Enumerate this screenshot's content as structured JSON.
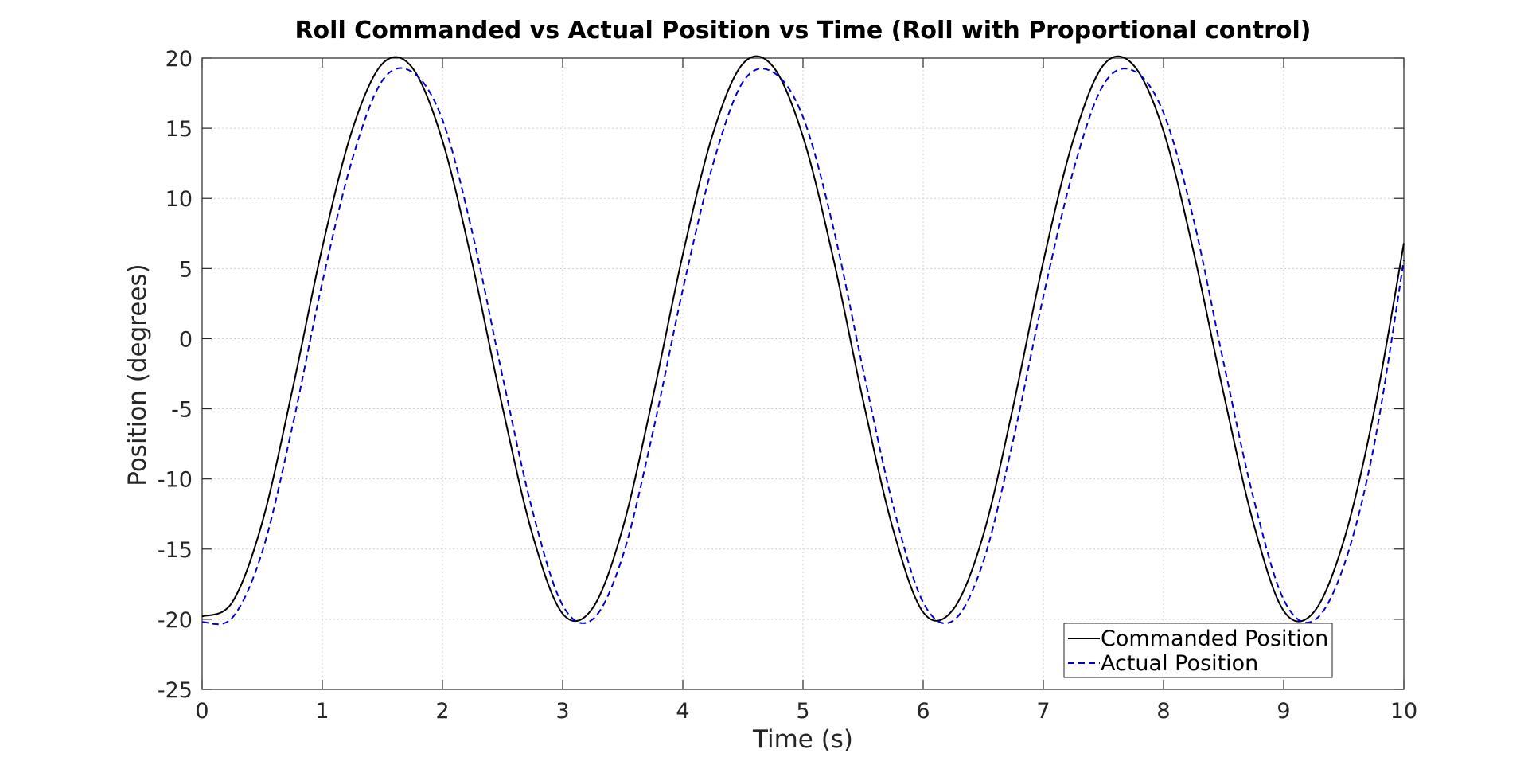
{
  "chart_data": {
    "type": "line",
    "title": "Roll Commanded vs Actual Position vs Time (Roll with Proportional control)",
    "xlabel": "Time (s)",
    "ylabel": "Position (degrees)",
    "xlim": [
      0,
      10
    ],
    "ylim": [
      -25,
      20
    ],
    "xticks": [
      0,
      1,
      2,
      3,
      4,
      5,
      6,
      7,
      8,
      9,
      10
    ],
    "yticks": [
      -25,
      -20,
      -15,
      -10,
      -5,
      0,
      5,
      10,
      15,
      20
    ],
    "grid": true,
    "legend_position": "bottom-right",
    "series": [
      {
        "name": "Commanded Position",
        "color": "#000000",
        "style": "solid",
        "x": [
          0,
          0.25,
          0.5,
          0.75,
          1,
          1.25,
          1.5,
          1.75,
          2,
          2.25,
          2.5,
          2.75,
          3,
          3.25,
          3.5,
          3.75,
          4,
          4.25,
          4.5,
          4.75,
          5,
          5.25,
          5.5,
          5.75,
          6,
          6.25,
          6.5,
          6.75,
          7,
          7.25,
          7.5,
          7.75,
          8,
          8.25,
          8.5,
          8.75,
          9,
          9.25,
          9.5,
          9.75,
          10
        ],
        "y": [
          -19.8,
          -18.8,
          -13.1,
          -3.7,
          6.5,
          14.9,
          19.6,
          19.3,
          14.1,
          5.3,
          -4.9,
          -14.0,
          -19.6,
          -19.2,
          -13.5,
          -4.2,
          6.0,
          14.6,
          19.6,
          19.4,
          14.4,
          5.8,
          -4.4,
          -13.6,
          -19.5,
          -19.3,
          -14.0,
          -4.8,
          5.5,
          14.2,
          19.5,
          19.5,
          14.8,
          6.2,
          -3.9,
          -13.2,
          -19.4,
          -19.5,
          -14.4,
          -5.3,
          6.8
        ]
      },
      {
        "name": "Actual Position",
        "color": "#0000cc",
        "style": "dashed",
        "x": [
          0,
          0.25,
          0.5,
          0.75,
          1,
          1.25,
          1.5,
          1.75,
          2,
          2.25,
          2.5,
          2.75,
          3,
          3.25,
          3.5,
          3.75,
          4,
          4.25,
          4.5,
          4.75,
          5,
          5.25,
          5.5,
          5.75,
          6,
          6.25,
          6.5,
          6.75,
          7,
          7.25,
          7.5,
          7.75,
          8,
          8.25,
          8.5,
          8.75,
          9,
          9.25,
          9.5,
          9.75,
          10
        ],
        "y": [
          -20.2,
          -19.9,
          -15.2,
          -6.3,
          4.0,
          12.8,
          18.4,
          19.0,
          15.6,
          7.5,
          -2.7,
          -12.3,
          -19.0,
          -20.0,
          -15.5,
          -6.7,
          3.5,
          12.4,
          18.3,
          19.0,
          15.8,
          8.0,
          -2.2,
          -11.9,
          -18.8,
          -20.1,
          -15.9,
          -7.2,
          3.0,
          12.0,
          18.1,
          19.1,
          16.1,
          8.5,
          -1.7,
          -11.4,
          -18.6,
          -20.1,
          -16.2,
          -7.7,
          5.6
        ]
      }
    ]
  }
}
